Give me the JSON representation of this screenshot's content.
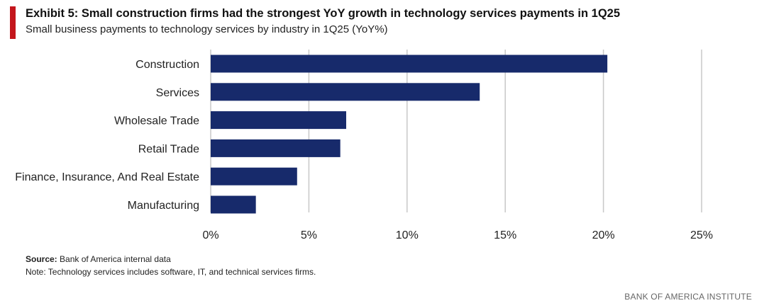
{
  "header": {
    "title": "Exhibit 5: Small construction firms had the strongest YoY growth in technology services payments in 1Q25",
    "subtitle": "Small business payments to technology services by industry in 1Q25 (YoY%)"
  },
  "footer": {
    "source_label": "Source:",
    "source_text": " Bank of America internal data",
    "note": "Note: Technology services includes software, IT, and technical services firms.",
    "brand": "BANK OF AMERICA INSTITUTE"
  },
  "colors": {
    "accent": "#c4161c",
    "bar": "#172a6b",
    "grid": "#c8c8c8"
  },
  "chart_data": {
    "type": "bar",
    "orientation": "horizontal",
    "categories": [
      "Construction",
      "Services",
      "Wholesale Trade",
      "Retail Trade",
      "Finance, Insurance, And Real Estate",
      "Manufacturing"
    ],
    "values": [
      20.2,
      13.7,
      6.9,
      6.6,
      4.4,
      2.3
    ],
    "xlim": [
      0,
      25
    ],
    "xticks": [
      0,
      5,
      10,
      15,
      20,
      25
    ],
    "xtick_labels": [
      "0%",
      "5%",
      "10%",
      "15%",
      "20%",
      "25%"
    ],
    "grid": "vertical",
    "legend": "none"
  }
}
